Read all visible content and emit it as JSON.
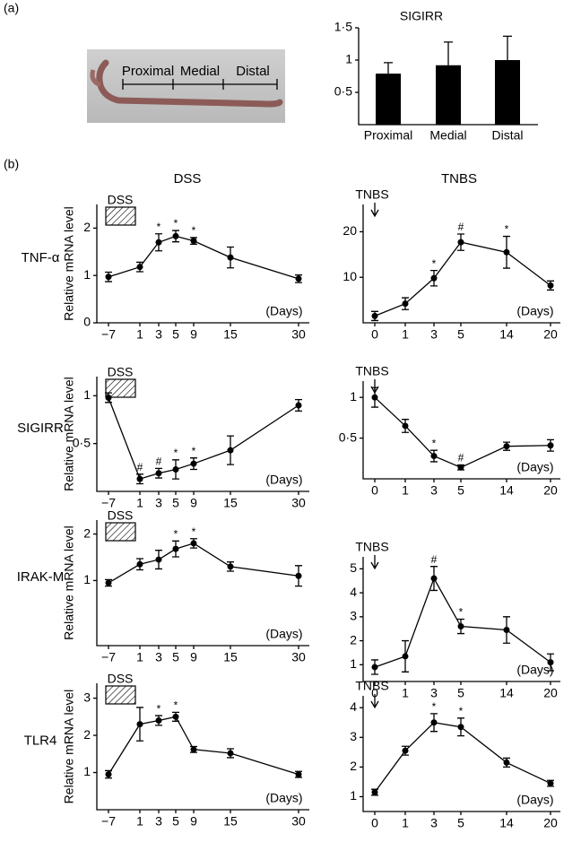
{
  "panel_labels": [
    "(a)",
    "(b)"
  ],
  "photo_labels": [
    "Proximal",
    "Medial",
    "Distal"
  ],
  "column_titles": [
    "DSS",
    "TNBS"
  ],
  "chart_data": [
    {
      "type": "bar",
      "title": "SIGIRR",
      "categories": [
        "Proximal",
        "Medial",
        "Distal"
      ],
      "values": [
        0.79,
        0.92,
        1.0
      ],
      "errors": [
        0.17,
        0.36,
        0.37
      ],
      "color": "#000000",
      "ylim": [
        0,
        1.5
      ],
      "yticks": [
        {
          "value": 0.5,
          "label": "0·5"
        },
        1,
        {
          "value": 1.5,
          "label": "1·5"
        }
      ]
    },
    {
      "type": "line",
      "title": "TNF-α",
      "ylabel": "Relative mRNA level",
      "xlabel": "(Days)",
      "treatment": "DSS",
      "categories": [
        "−7",
        "1",
        "3",
        "5",
        "9",
        "15",
        "30"
      ],
      "values": [
        0.97,
        1.18,
        1.7,
        1.83,
        1.73,
        1.38,
        0.93
      ],
      "errors": [
        0.1,
        0.1,
        0.18,
        0.12,
        0.07,
        0.22,
        0.08
      ],
      "annotations": [
        null,
        null,
        "*",
        "*",
        "*",
        null,
        null
      ],
      "color": "#000000",
      "ylim": [
        0,
        2.5
      ],
      "yticks": [
        0,
        1,
        2
      ]
    },
    {
      "type": "line",
      "xlabel": "(Days)",
      "treatment": "TNBS",
      "categories": [
        "0",
        "1",
        "3",
        "5",
        "14",
        "20"
      ],
      "values": [
        1.5,
        4.2,
        9.8,
        17.7,
        15.5,
        8.2
      ],
      "errors": [
        1,
        1.3,
        1.7,
        1.8,
        3.5,
        1
      ],
      "annotations": [
        null,
        null,
        "*",
        "#",
        "*",
        null
      ],
      "color": "#000000",
      "ylim": [
        0,
        26
      ],
      "yticks": [
        10,
        20
      ]
    },
    {
      "type": "line",
      "title": "SIGIRR",
      "ylabel": "Relative mRNA level",
      "xlabel": "(Days)",
      "treatment": "DSS",
      "categories": [
        "−7",
        "1",
        "3",
        "5",
        "9",
        "15",
        "30"
      ],
      "values": [
        0.98,
        0.13,
        0.19,
        0.23,
        0.29,
        0.43,
        0.9
      ],
      "errors": [
        0.05,
        0.05,
        0.05,
        0.1,
        0.06,
        0.15,
        0.06
      ],
      "annotations": [
        null,
        "#",
        "#",
        "*",
        "*",
        null,
        null
      ],
      "color": "#000000",
      "ylim": [
        0,
        1.2
      ],
      "yticks": [
        {
          "value": 0.5,
          "label": "0·5"
        },
        1
      ]
    },
    {
      "type": "line",
      "xlabel": "(Days)",
      "treatment": "TNBS",
      "categories": [
        "0",
        "1",
        "3",
        "5",
        "14",
        "20"
      ],
      "values": [
        1.0,
        0.65,
        0.28,
        0.14,
        0.4,
        0.41
      ],
      "errors": [
        0.12,
        0.08,
        0.07,
        0.03,
        0.05,
        0.07
      ],
      "annotations": [
        null,
        null,
        "*",
        "#",
        null,
        null
      ],
      "color": "#000000",
      "ylim": [
        0,
        1.2
      ],
      "yticks": [
        {
          "value": 0.5,
          "label": "0·5"
        },
        1
      ]
    },
    {
      "type": "line",
      "title": "IRAK-M",
      "ylabel": "Relative mRNA level",
      "xlabel": "(Days)",
      "treatment": "DSS",
      "categories": [
        "−7",
        "1",
        "3",
        "5",
        "9",
        "15",
        "30"
      ],
      "values": [
        0.95,
        1.35,
        1.45,
        1.68,
        1.8,
        1.3,
        1.1
      ],
      "errors": [
        0.07,
        0.12,
        0.2,
        0.17,
        0.1,
        0.1,
        0.22
      ],
      "annotations": [
        null,
        null,
        null,
        "*",
        "*",
        null,
        null
      ],
      "color": "#000000",
      "ylim": [
        -0.4,
        2.3
      ],
      "yticks": [
        1,
        2
      ]
    },
    {
      "type": "line",
      "xlabel": "(Days)",
      "treatment": "TNBS",
      "categories": [
        "0",
        "1",
        "3",
        "5",
        "14",
        "20"
      ],
      "values": [
        0.9,
        1.35,
        4.6,
        2.6,
        2.45,
        1.1
      ],
      "errors": [
        0.3,
        0.65,
        0.5,
        0.3,
        0.55,
        0.35
      ],
      "annotations": [
        null,
        null,
        "#",
        "*",
        null,
        null
      ],
      "color": "#000000",
      "ylim": [
        0.3,
        5.5
      ],
      "yticks": [
        1,
        2,
        3,
        4,
        5
      ]
    },
    {
      "type": "line",
      "title": "TLR4",
      "ylabel": "Relative mRNA level",
      "xlabel": "(Days)",
      "treatment": "DSS",
      "categories": [
        "−7",
        "1",
        "3",
        "5",
        "9",
        "15",
        "30"
      ],
      "values": [
        0.95,
        2.3,
        2.4,
        2.5,
        1.62,
        1.52,
        0.95
      ],
      "errors": [
        0.1,
        0.45,
        0.13,
        0.12,
        0.08,
        0.12,
        0.08
      ],
      "annotations": [
        null,
        null,
        "*",
        "*",
        null,
        null,
        null
      ],
      "color": "#000000",
      "ylim": [
        0,
        3.4
      ],
      "yticks": [
        1,
        2,
        3
      ]
    },
    {
      "type": "line",
      "xlabel": "(Days)",
      "treatment": "TNBS",
      "categories": [
        "0",
        "1",
        "3",
        "5",
        "14",
        "20"
      ],
      "values": [
        1.15,
        2.55,
        3.5,
        3.35,
        2.15,
        1.45
      ],
      "errors": [
        0.1,
        0.15,
        0.3,
        0.3,
        0.15,
        0.1
      ],
      "annotations": [
        null,
        null,
        "*",
        "*",
        null,
        null
      ],
      "color": "#000000",
      "ylim": [
        0.5,
        4.4
      ],
      "yticks": [
        1,
        2,
        3,
        4
      ]
    }
  ]
}
